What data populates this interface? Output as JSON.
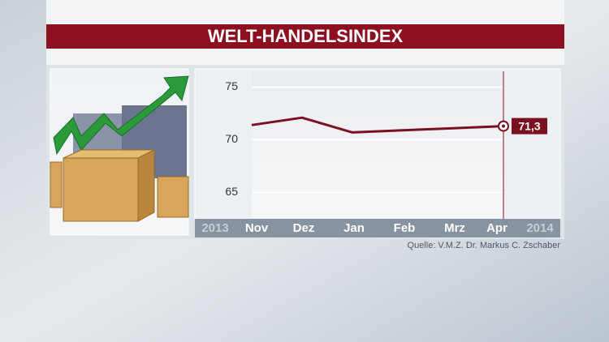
{
  "chart_data": {
    "type": "line",
    "title": "WELT-HANDELSINDEX",
    "categories": [
      "Nov",
      "Dez",
      "Jan",
      "Feb",
      "Mrz",
      "Apr"
    ],
    "period_labels": [
      "2013",
      "2014"
    ],
    "series": [
      {
        "color": "#7a1020",
        "values": [
          71.4,
          72.1,
          70.7,
          70.9,
          71.1,
          71.3
        ],
        "value_labels": [
          null,
          null,
          null,
          null,
          null,
          "71,3"
        ]
      }
    ],
    "ylim": [
      62.5,
      76.5
    ],
    "yticks": [
      65,
      70,
      75
    ],
    "grid": true,
    "source": "Quelle: V.M.Z. Dr. Markus C. Zschaber"
  }
}
